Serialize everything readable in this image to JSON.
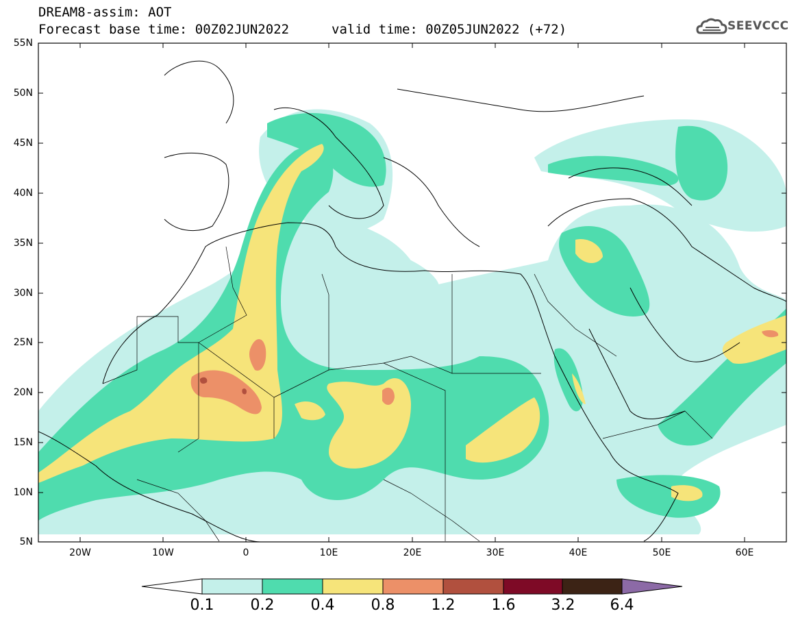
{
  "header": {
    "line1": "DREAM8-assim: AOT",
    "line2": "Forecast base time: 00Z02JUN2022",
    "line3": "valid time: 00Z05JUN2022 (+72)",
    "logo_text": "SEEVCCC",
    "logo_icon": "cloud-icon"
  },
  "axes": {
    "lat_labels": [
      "55N",
      "50N",
      "45N",
      "40N",
      "35N",
      "30N",
      "25N",
      "20N",
      "15N",
      "10N",
      "5N"
    ],
    "lon_labels": [
      "20W",
      "10W",
      "0",
      "10E",
      "20E",
      "30E",
      "40E",
      "50E",
      "60E"
    ]
  },
  "colorbar": {
    "labels": [
      "0.1",
      "0.2",
      "0.4",
      "0.8",
      "1.2",
      "1.6",
      "3.2",
      "6.4"
    ],
    "colors": [
      "#ffffff",
      "#c4f0ea",
      "#4fdcae",
      "#f6e47a",
      "#ec9068",
      "#b1503e",
      "#7e0a26",
      "#3c2315",
      "#8c6aa6"
    ]
  },
  "map": {
    "extent": {
      "lon_min": -25,
      "lon_max": 65,
      "lat_min": 5,
      "lat_max": 55
    },
    "colors": {
      "frame": "#000000",
      "coast": "#000000"
    }
  }
}
